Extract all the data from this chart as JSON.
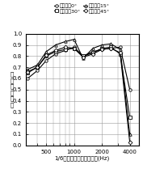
{
  "title": "",
  "xlabel": "1/6オクターブ中心周波数(Hz)",
  "ylabel": "斜\n入\n射\n吸\n音\n率",
  "xlim": [
    300,
    5000
  ],
  "ylim": [
    0.0,
    1.0
  ],
  "xticks": [
    500,
    1000,
    2000,
    4000
  ],
  "yticks": [
    0.0,
    0.1,
    0.2,
    0.3,
    0.4,
    0.5,
    0.6,
    0.7,
    0.8,
    0.9,
    1.0
  ],
  "legend_labels": [
    "入射角度0°",
    "入射角度30°",
    "入射角度15°",
    "入射角度45°"
  ],
  "legend_markers": [
    "o",
    "s",
    "^",
    "D"
  ],
  "frequencies": [
    315,
    400,
    500,
    630,
    800,
    1000,
    1250,
    1600,
    2000,
    2500,
    3150,
    4000
  ],
  "series_0d": [
    0.6,
    0.67,
    0.76,
    0.82,
    0.85,
    0.88,
    0.8,
    0.84,
    0.86,
    0.87,
    0.88,
    0.5
  ],
  "series_30d": [
    0.65,
    0.7,
    0.8,
    0.84,
    0.86,
    0.87,
    0.8,
    0.83,
    0.87,
    0.88,
    0.82,
    0.25
  ],
  "series_15d": [
    0.68,
    0.72,
    0.84,
    0.9,
    0.93,
    0.95,
    0.78,
    0.87,
    0.9,
    0.91,
    0.86,
    0.1
  ],
  "series_45d": [
    0.66,
    0.7,
    0.81,
    0.85,
    0.88,
    0.87,
    0.79,
    0.82,
    0.86,
    0.87,
    0.83,
    0.03
  ],
  "line_color": "#000000",
  "bg_color": "#ffffff",
  "grid_color": "#999999",
  "fontsize_axis_label": 5.0,
  "fontsize_tick": 5.0,
  "fontsize_legend": 4.5
}
